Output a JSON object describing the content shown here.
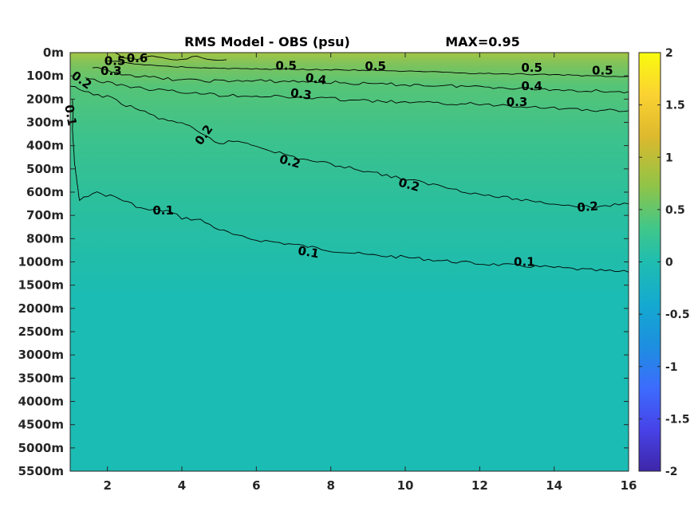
{
  "title": "RMS Model - OBS (psu)",
  "max_label": "MAX=0.95",
  "chart_data": {
    "type": "heatmap",
    "title": "RMS Model - OBS (psu)",
    "annotation": "MAX=0.95",
    "xlim": [
      1,
      16
    ],
    "x_ticks": [
      "2",
      "4",
      "6",
      "8",
      "10",
      "12",
      "14",
      "16"
    ],
    "y_ticks": [
      "0m",
      "100m",
      "200m",
      "300m",
      "400m",
      "500m",
      "600m",
      "700m",
      "800m",
      "1000m",
      "1500m",
      "2000m",
      "2500m",
      "3000m",
      "3500m",
      "4000m",
      "4500m",
      "5000m",
      "5500m"
    ],
    "colorbar": {
      "range": [
        -2,
        2
      ],
      "ticks": [
        "2",
        "1.5",
        "1",
        "0.5",
        "0",
        "-0.5",
        "-1",
        "-1.5",
        "-2"
      ],
      "colormap": "parula",
      "colors": [
        "#3e26a8",
        "#4743e8",
        "#3c6cfd",
        "#1d8fdf",
        "#14aad0",
        "#1fbdb0",
        "#40c78a",
        "#8fc448",
        "#ddb92d",
        "#fbd232",
        "#f9fb0e"
      ]
    },
    "contours": [
      {
        "level": "0.1",
        "points": [
          [
            1.06,
            200
          ],
          [
            1.08,
            260
          ],
          [
            1.06,
            330
          ],
          [
            1.12,
            480
          ],
          [
            1.25,
            640
          ],
          [
            1.6,
            600
          ],
          [
            2.2,
            620
          ],
          [
            3.0,
            675
          ],
          [
            3.6,
            680
          ],
          [
            4.0,
            710
          ],
          [
            4.5,
            720
          ],
          [
            5.0,
            760
          ],
          [
            5.5,
            790
          ],
          [
            6.0,
            810
          ],
          [
            7.0,
            850
          ],
          [
            8.0,
            900
          ],
          [
            9.0,
            940
          ],
          [
            10.0,
            960
          ],
          [
            11.0,
            990
          ],
          [
            12.0,
            1040
          ],
          [
            13.0,
            1080
          ],
          [
            14.0,
            1120
          ],
          [
            15.0,
            1180
          ],
          [
            16.0,
            1220
          ]
        ]
      },
      {
        "level": "0.2",
        "points": [
          [
            1.0,
            145
          ],
          [
            1.5,
            175
          ],
          [
            2.0,
            190
          ],
          [
            2.5,
            225
          ],
          [
            3.0,
            255
          ],
          [
            3.5,
            290
          ],
          [
            4.0,
            300
          ],
          [
            4.5,
            350
          ],
          [
            5.0,
            390
          ],
          [
            5.5,
            380
          ],
          [
            6.0,
            400
          ],
          [
            7.0,
            450
          ],
          [
            8.0,
            480
          ],
          [
            9.0,
            510
          ],
          [
            10.0,
            545
          ],
          [
            11.0,
            575
          ],
          [
            12.0,
            610
          ],
          [
            13.0,
            630
          ],
          [
            14.0,
            650
          ],
          [
            15.0,
            665
          ],
          [
            16.0,
            650
          ]
        ]
      },
      {
        "level": "0.3",
        "points": [
          [
            1.4,
            108
          ],
          [
            2.0,
            130
          ],
          [
            3.0,
            155
          ],
          [
            4.0,
            170
          ],
          [
            5.0,
            182
          ],
          [
            6.0,
            186
          ],
          [
            7.0,
            192
          ],
          [
            8.0,
            198
          ],
          [
            9.0,
            208
          ],
          [
            10.0,
            214
          ],
          [
            11.0,
            218
          ],
          [
            12.0,
            222
          ],
          [
            13.0,
            228
          ],
          [
            14.0,
            238
          ],
          [
            15.0,
            248
          ],
          [
            16.0,
            250
          ]
        ]
      },
      {
        "level": "0.4",
        "points": [
          [
            1.6,
            65
          ],
          [
            2.0,
            80
          ],
          [
            3.0,
            105
          ],
          [
            4.0,
            118
          ],
          [
            5.0,
            122
          ],
          [
            6.0,
            122
          ],
          [
            7.0,
            124
          ],
          [
            8.0,
            128
          ],
          [
            9.0,
            135
          ],
          [
            10.0,
            138
          ],
          [
            11.0,
            142
          ],
          [
            12.0,
            146
          ],
          [
            13.0,
            152
          ],
          [
            14.0,
            160
          ],
          [
            15.0,
            164
          ],
          [
            16.0,
            168
          ]
        ]
      },
      {
        "level": "0.5",
        "points": [
          [
            2.0,
            35
          ],
          [
            3.0,
            52
          ],
          [
            4.0,
            62
          ],
          [
            5.0,
            68
          ],
          [
            6.0,
            70
          ],
          [
            7.0,
            72
          ],
          [
            8.0,
            74
          ],
          [
            9.0,
            76
          ],
          [
            10.0,
            80
          ],
          [
            11.0,
            85
          ],
          [
            12.0,
            90
          ],
          [
            13.0,
            92
          ],
          [
            14.0,
            95
          ],
          [
            15.0,
            100
          ],
          [
            16.0,
            102
          ]
        ]
      },
      {
        "level": "0.6",
        "points": [
          [
            2.2,
            0
          ],
          [
            2.4,
            20
          ],
          [
            2.8,
            28
          ],
          [
            3.2,
            12
          ],
          [
            3.6,
            28
          ],
          [
            4.0,
            30
          ],
          [
            4.4,
            15
          ],
          [
            4.8,
            32
          ],
          [
            5.2,
            30
          ]
        ]
      }
    ],
    "contour_labels": [
      {
        "text": "0.1",
        "x": 1.0,
        "y": 270,
        "rotation": 80
      },
      {
        "text": "0.1",
        "x": 3.5,
        "y": 680,
        "rotation": 0
      },
      {
        "text": "0.1",
        "x": 7.4,
        "y": 920,
        "rotation": 10
      },
      {
        "text": "0.1",
        "x": 13.2,
        "y": 1010,
        "rotation": 0
      },
      {
        "text": "0.2",
        "x": 1.3,
        "y": 120,
        "rotation": 35
      },
      {
        "text": "0.2",
        "x": 4.6,
        "y": 355,
        "rotation": -55
      },
      {
        "text": "0.2",
        "x": 6.9,
        "y": 470,
        "rotation": 15
      },
      {
        "text": "0.2",
        "x": 10.1,
        "y": 570,
        "rotation": 15
      },
      {
        "text": "0.2",
        "x": 14.9,
        "y": 665,
        "rotation": -5
      },
      {
        "text": "0.3",
        "x": 2.1,
        "y": 80,
        "rotation": 0
      },
      {
        "text": "0.3",
        "x": 7.2,
        "y": 180,
        "rotation": 8
      },
      {
        "text": "0.3",
        "x": 13.0,
        "y": 215,
        "rotation": 0
      },
      {
        "text": "0.4",
        "x": 7.6,
        "y": 115,
        "rotation": 8
      },
      {
        "text": "0.4",
        "x": 13.4,
        "y": 145,
        "rotation": 0
      },
      {
        "text": "0.5",
        "x": 6.8,
        "y": 58,
        "rotation": 0
      },
      {
        "text": "0.5",
        "x": 9.2,
        "y": 60,
        "rotation": 0
      },
      {
        "text": "0.5",
        "x": 13.4,
        "y": 66,
        "rotation": 0
      },
      {
        "text": "0.5",
        "x": 15.3,
        "y": 78,
        "rotation": 0
      },
      {
        "text": "0.6",
        "x": 2.8,
        "y": 25,
        "rotation": 0
      },
      {
        "text": "0.5",
        "x": 2.2,
        "y": 38,
        "rotation": 0
      }
    ]
  }
}
